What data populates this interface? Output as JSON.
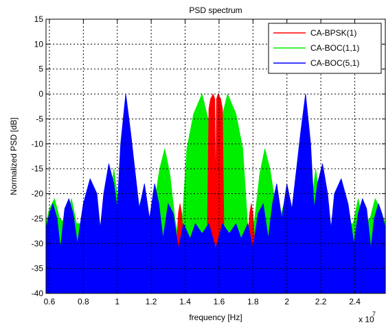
{
  "chart_data": {
    "type": "area",
    "title": "PSD spectrum",
    "xlabel": "frequency [Hz]",
    "ylabel": "Normalized PSD [dB]",
    "x_multiplier_label": "x 10",
    "x_multiplier_exponent": "7",
    "xlim": [
      0.58,
      2.58
    ],
    "ylim": [
      -40,
      15
    ],
    "x_ticks": [
      0.6,
      0.8,
      1.0,
      1.2,
      1.4,
      1.6,
      1.8,
      2.0,
      2.2,
      2.4
    ],
    "x_tick_labels": [
      "0.6",
      "0.8",
      "1",
      "1.2",
      "1.4",
      "1.6",
      "1.8",
      "2",
      "2.2",
      "2.4"
    ],
    "y_ticks": [
      15,
      10,
      5,
      0,
      -5,
      -10,
      -15,
      -20,
      -25,
      -30,
      -35,
      -40
    ],
    "y_tick_labels": [
      "15",
      "10",
      "5",
      "0",
      "-5",
      "-10",
      "-15",
      "-20",
      "-25",
      "-30",
      "-35",
      "-40"
    ],
    "grid": true,
    "legend_position": "top-right",
    "series": [
      {
        "name": "CA-BPSK(1)",
        "color": "#ff0000",
        "points": [
          [
            1.35,
            -30
          ],
          [
            1.36,
            -24
          ],
          [
            1.37,
            -22
          ],
          [
            1.38,
            -24
          ],
          [
            1.39,
            -30
          ],
          [
            1.53,
            -30
          ],
          [
            1.54,
            -3
          ],
          [
            1.55,
            -1
          ],
          [
            1.565,
            0
          ],
          [
            1.575,
            -1
          ],
          [
            1.58,
            -20
          ],
          [
            1.585,
            -1
          ],
          [
            1.595,
            0
          ],
          [
            1.61,
            -1
          ],
          [
            1.62,
            -3
          ],
          [
            1.63,
            -30
          ],
          [
            1.77,
            -30
          ],
          [
            1.78,
            -24
          ],
          [
            1.79,
            -22
          ],
          [
            1.8,
            -24
          ],
          [
            1.81,
            -30
          ]
        ]
      },
      {
        "name": "CA-BOC(1,1)",
        "color": "#00ee00",
        "points": [
          [
            0.58,
            -26
          ],
          [
            0.6,
            -23
          ],
          [
            0.63,
            -21
          ],
          [
            0.66,
            -25
          ],
          [
            0.7,
            -26
          ],
          [
            0.73,
            -21
          ],
          [
            0.76,
            -26
          ],
          [
            0.82,
            -26
          ],
          [
            0.85,
            -19
          ],
          [
            0.88,
            -26
          ],
          [
            0.94,
            -26
          ],
          [
            0.98,
            -15
          ],
          [
            1.02,
            -26
          ],
          [
            1.1,
            -26
          ],
          [
            1.15,
            -20
          ],
          [
            1.2,
            -26
          ],
          [
            1.25,
            -15
          ],
          [
            1.28,
            -11
          ],
          [
            1.31,
            -16
          ],
          [
            1.34,
            -25
          ],
          [
            1.36,
            -29
          ],
          [
            1.38,
            -27
          ],
          [
            1.41,
            -11
          ],
          [
            1.45,
            -4
          ],
          [
            1.5,
            0
          ],
          [
            1.535,
            -5
          ],
          [
            1.56,
            -14
          ],
          [
            1.575,
            -28
          ],
          [
            1.59,
            -14
          ],
          [
            1.615,
            -5
          ],
          [
            1.65,
            0
          ],
          [
            1.7,
            -4
          ],
          [
            1.74,
            -11
          ],
          [
            1.77,
            -27
          ],
          [
            1.79,
            -29
          ],
          [
            1.81,
            -25
          ],
          [
            1.84,
            -16
          ],
          [
            1.87,
            -11
          ],
          [
            1.9,
            -15
          ],
          [
            1.95,
            -26
          ],
          [
            2.0,
            -20
          ],
          [
            2.05,
            -26
          ],
          [
            2.13,
            -26
          ],
          [
            2.17,
            -15
          ],
          [
            2.21,
            -26
          ],
          [
            2.27,
            -26
          ],
          [
            2.3,
            -19
          ],
          [
            2.33,
            -26
          ],
          [
            2.39,
            -26
          ],
          [
            2.42,
            -21
          ],
          [
            2.45,
            -26
          ],
          [
            2.49,
            -25
          ],
          [
            2.52,
            -21
          ],
          [
            2.55,
            -23
          ],
          [
            2.58,
            -26
          ]
        ]
      },
      {
        "name": "CA-BOC(5,1)",
        "color": "#0000ff",
        "points": [
          [
            0.58,
            -27
          ],
          [
            0.6,
            -24
          ],
          [
            0.62,
            -22
          ],
          [
            0.645,
            -25
          ],
          [
            0.665,
            -31
          ],
          [
            0.69,
            -23
          ],
          [
            0.715,
            -21
          ],
          [
            0.74,
            -24
          ],
          [
            0.765,
            -30
          ],
          [
            0.8,
            -22
          ],
          [
            0.84,
            -17
          ],
          [
            0.88,
            -20
          ],
          [
            0.9,
            -27
          ],
          [
            0.92,
            -20
          ],
          [
            0.95,
            -14
          ],
          [
            0.98,
            -18
          ],
          [
            1.0,
            -23
          ],
          [
            1.02,
            -10
          ],
          [
            1.05,
            0
          ],
          [
            1.08,
            -8
          ],
          [
            1.1,
            -14
          ],
          [
            1.13,
            -23
          ],
          [
            1.16,
            -18
          ],
          [
            1.19,
            -25
          ],
          [
            1.22,
            -18
          ],
          [
            1.245,
            -22
          ],
          [
            1.27,
            -29
          ],
          [
            1.3,
            -22
          ],
          [
            1.33,
            -24
          ],
          [
            1.36,
            -31
          ],
          [
            1.39,
            -26
          ],
          [
            1.43,
            -29
          ],
          [
            1.46,
            -26
          ],
          [
            1.5,
            -28
          ],
          [
            1.54,
            -26
          ],
          [
            1.58,
            -31
          ],
          [
            1.62,
            -26
          ],
          [
            1.66,
            -28
          ],
          [
            1.7,
            -26
          ],
          [
            1.73,
            -29
          ],
          [
            1.77,
            -26
          ],
          [
            1.8,
            -31
          ],
          [
            1.83,
            -24
          ],
          [
            1.86,
            -22
          ],
          [
            1.89,
            -29
          ],
          [
            1.915,
            -22
          ],
          [
            1.94,
            -18
          ],
          [
            1.97,
            -25
          ],
          [
            2.0,
            -18
          ],
          [
            2.03,
            -23
          ],
          [
            2.06,
            -14
          ],
          [
            2.08,
            -8
          ],
          [
            2.11,
            0
          ],
          [
            2.14,
            -10
          ],
          [
            2.16,
            -23
          ],
          [
            2.18,
            -18
          ],
          [
            2.21,
            -14
          ],
          [
            2.24,
            -20
          ],
          [
            2.26,
            -27
          ],
          [
            2.28,
            -20
          ],
          [
            2.32,
            -17
          ],
          [
            2.36,
            -22
          ],
          [
            2.395,
            -30
          ],
          [
            2.42,
            -24
          ],
          [
            2.445,
            -21
          ],
          [
            2.47,
            -23
          ],
          [
            2.495,
            -31
          ],
          [
            2.515,
            -25
          ],
          [
            2.54,
            -22
          ],
          [
            2.56,
            -24
          ],
          [
            2.58,
            -27
          ]
        ]
      }
    ]
  }
}
